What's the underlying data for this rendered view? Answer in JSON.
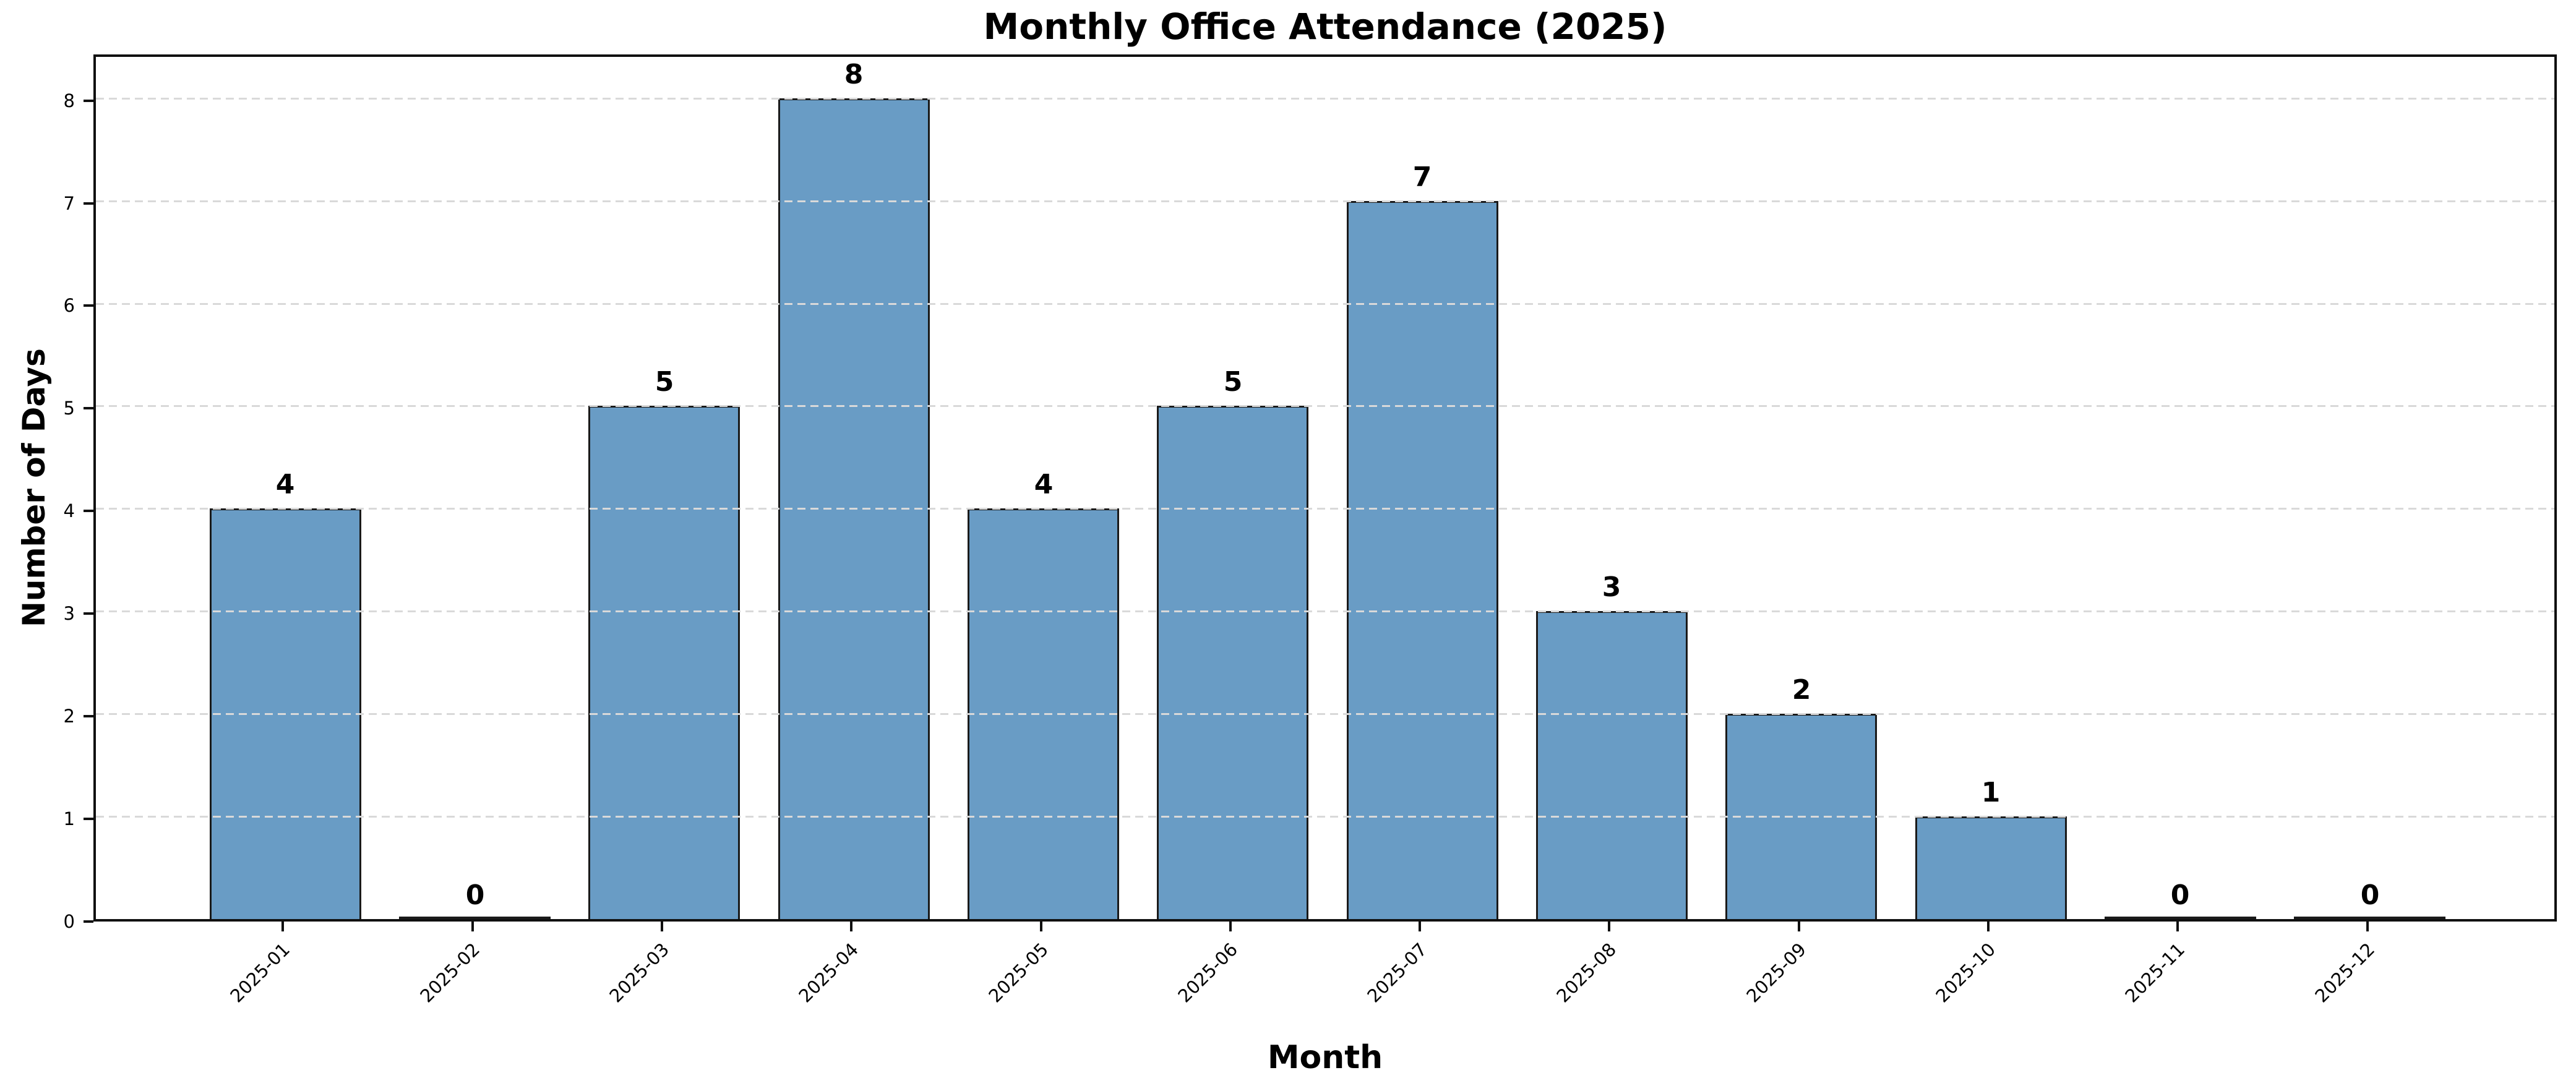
{
  "chart_data": {
    "type": "bar",
    "title": "Monthly Office Attendance (2025)",
    "xlabel": "Month",
    "ylabel": "Number of Days",
    "categories": [
      "2025-01",
      "2025-02",
      "2025-03",
      "2025-04",
      "2025-05",
      "2025-06",
      "2025-07",
      "2025-08",
      "2025-09",
      "2025-10",
      "2025-11",
      "2025-12"
    ],
    "values": [
      4,
      0,
      5,
      8,
      4,
      5,
      7,
      3,
      2,
      1,
      0,
      0
    ],
    "value_labels": [
      "4",
      "0",
      "5",
      "8",
      "4",
      "5",
      "7",
      "3",
      "2",
      "1",
      "0",
      "0"
    ],
    "yticks": [
      0,
      1,
      2,
      3,
      4,
      5,
      6,
      7,
      8
    ],
    "ylim": [
      0,
      8.45
    ],
    "grid": "horizontal-dashed",
    "legend": "none",
    "colors": {
      "bar_fill": "#699CC5",
      "bar_edge": "#1a1a1a",
      "gridline": "#d9d9d9",
      "spine": "#101010",
      "text": "#000000",
      "background": "#ffffff"
    }
  }
}
